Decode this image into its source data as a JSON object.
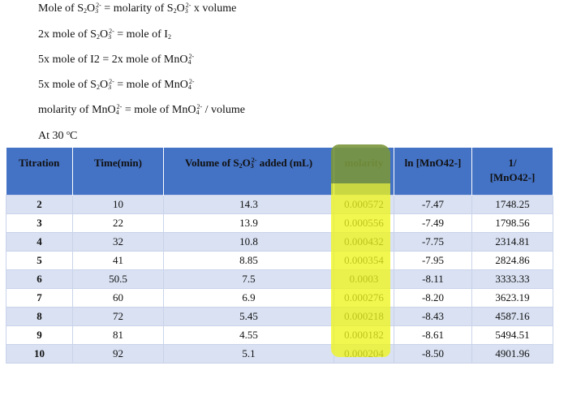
{
  "notes": {
    "line1": {
      "a": "Mole of S",
      "s1": "2",
      "b": "O",
      "s2": "3",
      "c": "2-",
      "d": " = molarity of S",
      "e": "2",
      "f": "O",
      "g": "3",
      "h": "2-",
      "i": " x volume"
    },
    "line2": {
      "a": "2x mole of S",
      "s1": "2",
      "b": "O",
      "s2": "3",
      "c": "2-",
      "d": " = mole of I",
      "e": "2"
    },
    "line3": {
      "a": "5x mole of I2 = 2x mole of MnO",
      "s1": "4",
      "c": "2-"
    },
    "line4": {
      "a": "5x mole of S",
      "s1": "2",
      "b": "O",
      "s2": "3",
      "c": "2-",
      "d": " = mole of MnO",
      "e": "4",
      "f": "2-"
    },
    "line5": {
      "a": "molarity of MnO",
      "s1": "4",
      "c": "2-",
      "d": " = mole of MnO",
      "e": "4",
      "f": "2-",
      "g": " / volume"
    },
    "line6": {
      "a": "At 30 ",
      "deg": "o",
      "b": "C"
    }
  },
  "table": {
    "headers": {
      "titration": "Titration",
      "time": "Time(min)",
      "volume_a": "Volume of S",
      "volume_s1": "2",
      "volume_b": "O",
      "volume_s2": "3",
      "volume_sup": "2-",
      "volume_c": " added (mL)",
      "molarity": "molarity",
      "ln": "ln [MnO42-]",
      "inv_line1": "1/",
      "inv_line2": "[MnO42-]"
    },
    "rows": [
      {
        "titration": "2",
        "time": "10",
        "volume": "14.3",
        "molarity": "0.000572",
        "ln": "-7.47",
        "inv": "1748.25"
      },
      {
        "titration": "3",
        "time": "22",
        "volume": "13.9",
        "molarity": "0.000556",
        "ln": "-7.49",
        "inv": "1798.56"
      },
      {
        "titration": "4",
        "time": "32",
        "volume": "10.8",
        "molarity": "0.000432",
        "ln": "-7.75",
        "inv": "2314.81"
      },
      {
        "titration": "5",
        "time": "41",
        "volume": "8.85",
        "molarity": "0.000354",
        "ln": "-7.95",
        "inv": "2824.86"
      },
      {
        "titration": "6",
        "time": "50.5",
        "volume": "7.5",
        "molarity": "0.0003",
        "ln": "-8.11",
        "inv": "3333.33"
      },
      {
        "titration": "7",
        "time": "60",
        "volume": "6.9",
        "molarity": "0.000276",
        "ln": "-8.20",
        "inv": "3623.19"
      },
      {
        "titration": "8",
        "time": "72",
        "volume": "5.45",
        "molarity": "0.000218",
        "ln": "-8.43",
        "inv": "4587.16"
      },
      {
        "titration": "9",
        "time": "81",
        "volume": "4.55",
        "molarity": "0.000182",
        "ln": "-8.61",
        "inv": "5494.51"
      },
      {
        "titration": "10",
        "time": "92",
        "volume": "5.1",
        "molarity": "0.000204",
        "ln": "-8.50",
        "inv": "4901.96"
      }
    ]
  },
  "colors": {
    "header_bg": "#4472c4",
    "band": "#d9e1f2",
    "highlight": "#eef51e"
  }
}
